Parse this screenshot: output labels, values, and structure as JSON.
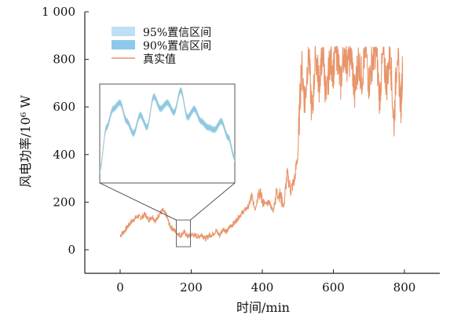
{
  "chart_data": {
    "type": "line",
    "title": "",
    "xlabel": "时间/min",
    "ylabel": "风电功率/10⁶ W",
    "xlim": [
      -80,
      850
    ],
    "ylim": [
      -100,
      1000
    ],
    "xticks": [
      0,
      200,
      400,
      600,
      800
    ],
    "xtick_labels": [
      "0",
      "200",
      "400",
      "600",
      "800"
    ],
    "yticks": [
      0,
      200,
      400,
      600,
      800,
      1000
    ],
    "ytick_labels": [
      "0",
      "200",
      "400",
      "600",
      "800",
      "1 000"
    ],
    "grid": false,
    "legend_position": "top-left",
    "series": [
      {
        "name": "95%置信区间",
        "kind": "band",
        "color": "#bfe0f2"
      },
      {
        "name": "90%置信区间",
        "kind": "band",
        "color": "#8cc9ea"
      },
      {
        "name": "真实值",
        "kind": "line",
        "color": "#e8956a",
        "x": [
          0,
          10,
          20,
          30,
          40,
          50,
          60,
          70,
          80,
          90,
          100,
          110,
          120,
          130,
          140,
          150,
          160,
          170,
          180,
          190,
          200,
          210,
          220,
          230,
          240,
          250,
          260,
          270,
          280,
          290,
          300,
          310,
          320,
          330,
          340,
          350,
          360,
          370,
          380,
          390,
          400,
          410,
          420,
          430,
          440,
          450,
          460,
          470,
          480,
          490,
          500,
          510,
          520,
          530,
          540,
          550,
          560,
          570,
          580,
          590,
          600,
          610,
          620,
          630,
          640,
          650,
          660,
          670,
          680,
          690,
          700,
          710,
          720,
          730,
          740,
          750,
          760,
          770,
          780,
          790,
          795
        ],
        "y": [
          60,
          75,
          95,
          115,
          130,
          140,
          135,
          150,
          125,
          140,
          120,
          150,
          165,
          145,
          100,
          85,
          70,
          60,
          75,
          55,
          65,
          60,
          55,
          65,
          45,
          60,
          65,
          80,
          60,
          90,
          75,
          100,
          110,
          130,
          150,
          165,
          180,
          220,
          170,
          250,
          210,
          190,
          200,
          160,
          240,
          230,
          180,
          320,
          250,
          290,
          400,
          780,
          620,
          840,
          560,
          820,
          700,
          850,
          620,
          800,
          760,
          840,
          690,
          850,
          780,
          830,
          650,
          800,
          720,
          850,
          700,
          800,
          850,
          640,
          820,
          700,
          840,
          520,
          850,
          600,
          780
        ]
      }
    ],
    "inset": {
      "zoom_x_range": [
        145,
        165
      ],
      "zoom_y_range": [
        35,
        115
      ],
      "series": [
        {
          "name": "真实值",
          "x": [
            145,
            146,
            147,
            148,
            149,
            150,
            151,
            152,
            153,
            154,
            155,
            156,
            157,
            158,
            159,
            160,
            161,
            162,
            163,
            164,
            165
          ],
          "y": [
            45,
            80,
            95,
            100,
            85,
            75,
            90,
            80,
            105,
            95,
            100,
            92,
            110,
            88,
            95,
            85,
            80,
            78,
            85,
            72,
            55
          ]
        }
      ]
    }
  }
}
